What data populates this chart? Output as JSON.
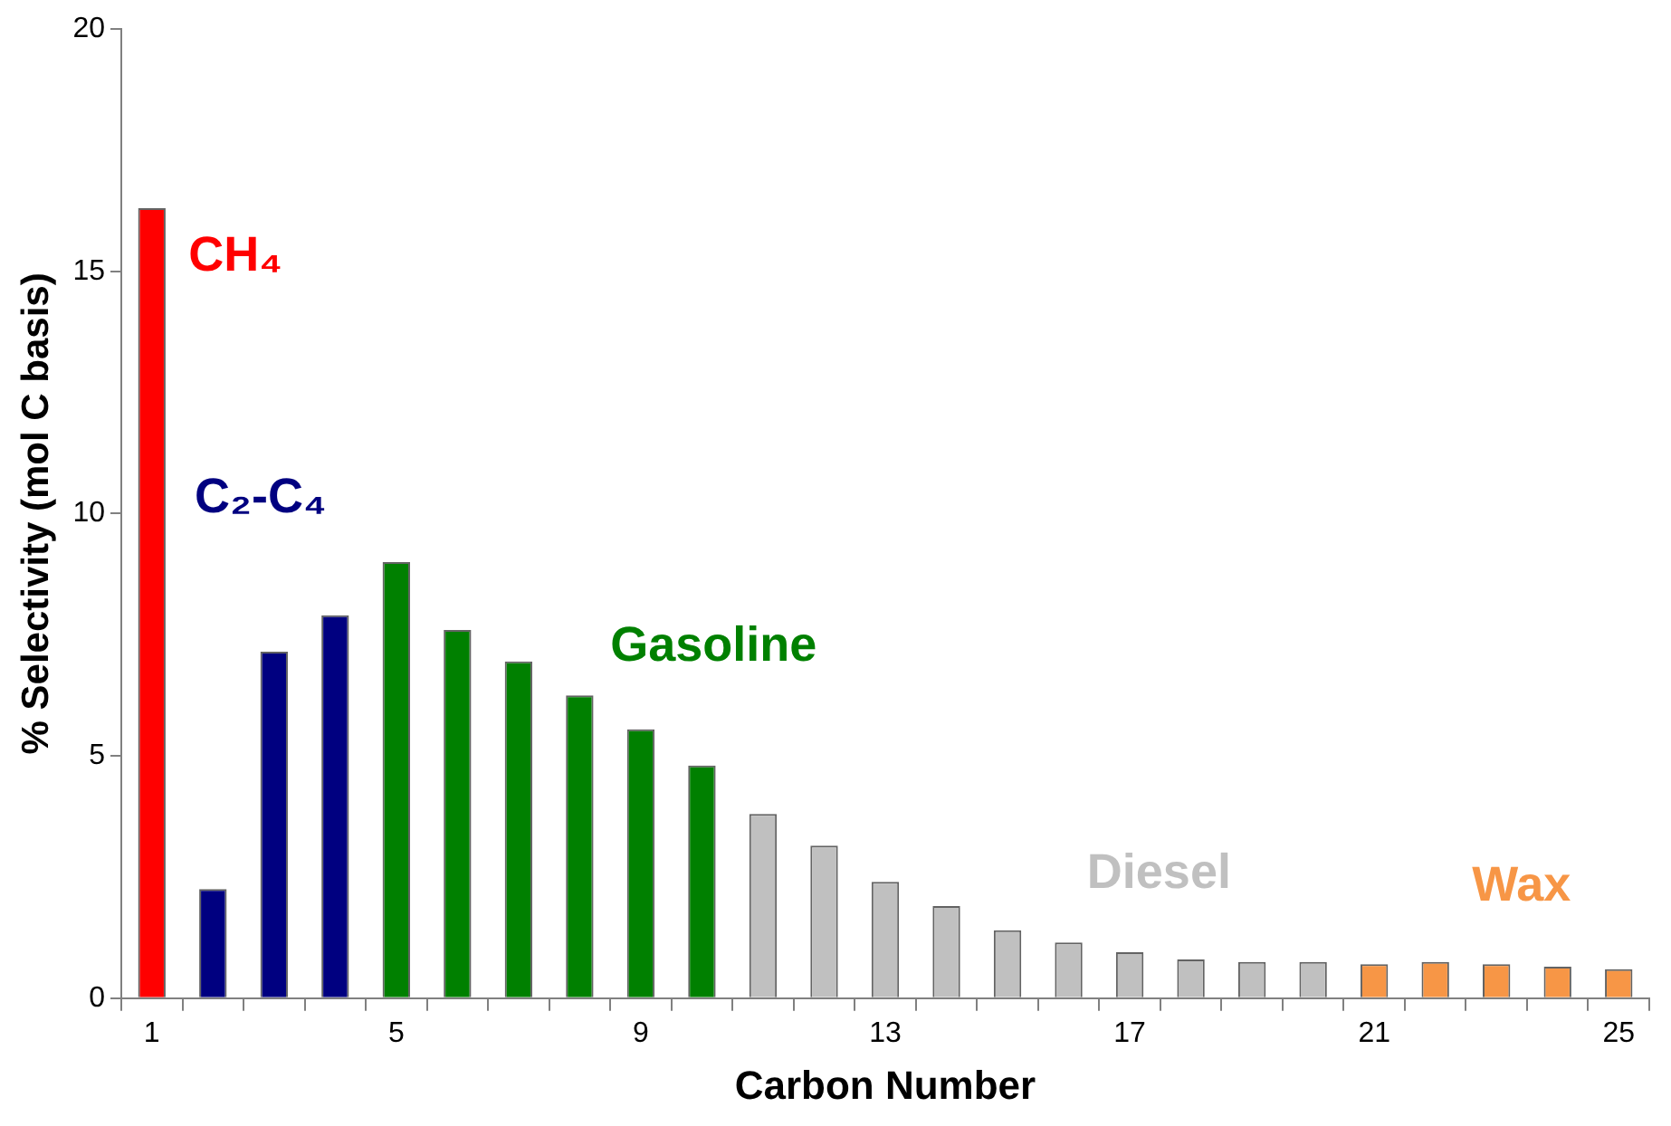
{
  "chart_data": {
    "type": "bar",
    "xlabel": "Carbon Number",
    "ylabel": "% Selectivity (mol C basis)",
    "categories": [
      "1",
      null,
      null,
      null,
      "5",
      null,
      null,
      null,
      "9",
      null,
      null,
      null,
      "13",
      null,
      null,
      null,
      "17",
      null,
      null,
      null,
      "21",
      null,
      null,
      null,
      "25"
    ],
    "stacked": true,
    "ylim": [
      0,
      20
    ],
    "yticks": [
      0,
      5,
      10,
      15,
      20
    ],
    "grid": false,
    "legend": false,
    "series": [
      {
        "name": "CH₄",
        "color": "#ff0000",
        "values": [
          16.3,
          null,
          null,
          null,
          null,
          null,
          null,
          null,
          null,
          null,
          null,
          null,
          null,
          null,
          null,
          null,
          null,
          null,
          null,
          null,
          null,
          null,
          null,
          null,
          null
        ]
      },
      {
        "name": "C₂-C₄",
        "color": "#000080",
        "values": [
          null,
          2.25,
          7.15,
          7.9,
          null,
          null,
          null,
          null,
          null,
          null,
          null,
          null,
          null,
          null,
          null,
          null,
          null,
          null,
          null,
          null,
          null,
          null,
          null,
          null,
          null
        ]
      },
      {
        "name": "Gasoline",
        "color": "#008000",
        "values": [
          null,
          null,
          null,
          null,
          9.0,
          7.6,
          6.95,
          6.25,
          5.55,
          4.8,
          null,
          null,
          null,
          null,
          null,
          null,
          null,
          null,
          null,
          null,
          null,
          null,
          null,
          null,
          null
        ]
      },
      {
        "name": "Diesel",
        "color": "#c0c0c0",
        "values": [
          null,
          null,
          null,
          null,
          null,
          null,
          null,
          null,
          null,
          null,
          3.8,
          3.15,
          2.4,
          1.9,
          1.4,
          1.15,
          0.95,
          0.8,
          0.75,
          0.75,
          null,
          null,
          null,
          null,
          null
        ]
      },
      {
        "name": "Wax",
        "color": "#f79646",
        "values": [
          null,
          null,
          null,
          null,
          null,
          null,
          null,
          null,
          null,
          null,
          null,
          null,
          null,
          null,
          null,
          null,
          null,
          null,
          null,
          null,
          0.7,
          0.75,
          0.7,
          0.65,
          0.6
        ]
      }
    ]
  }
}
